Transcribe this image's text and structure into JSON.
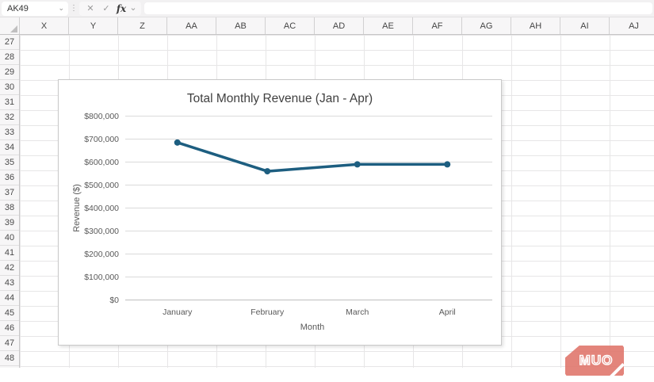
{
  "formula_bar": {
    "name_box_value": "AK49",
    "cancel_label": "✕",
    "enter_label": "✓",
    "fx_label": "fx",
    "formula_value": ""
  },
  "grid": {
    "column_headers": [
      "X",
      "Y",
      "Z",
      "AA",
      "AB",
      "AC",
      "AD",
      "AE",
      "AF",
      "AG",
      "AH",
      "AI",
      "AJ"
    ],
    "row_headers": [
      "27",
      "28",
      "29",
      "30",
      "31",
      "32",
      "33",
      "34",
      "35",
      "36",
      "37",
      "38",
      "39",
      "40",
      "41",
      "42",
      "43",
      "44",
      "45",
      "46",
      "47",
      "48"
    ]
  },
  "chart_data": {
    "type": "line",
    "title": "Total Monthly Revenue (Jan - Apr)",
    "categories": [
      "January",
      "February",
      "March",
      "April"
    ],
    "series": [
      {
        "name": "Total Monthly Revenue",
        "values": [
          685000,
          560000,
          590000,
          590000
        ]
      }
    ],
    "xlabel": "Month",
    "ylabel": "Revenue ($)",
    "ylim": [
      0,
      800000
    ],
    "ytick_step": 100000,
    "ytick_labels": [
      "$0",
      "$100,000",
      "$200,000",
      "$300,000",
      "$400,000",
      "$500,000",
      "$600,000",
      "$700,000",
      "$800,000"
    ],
    "grid": true,
    "legend_position": "none",
    "line_color": "#1d5e80",
    "title_color": "#404040",
    "axis_text_color": "#595959",
    "gridline_color": "#dadada"
  },
  "watermark": {
    "label": "MUO",
    "color": "#e17a70"
  }
}
